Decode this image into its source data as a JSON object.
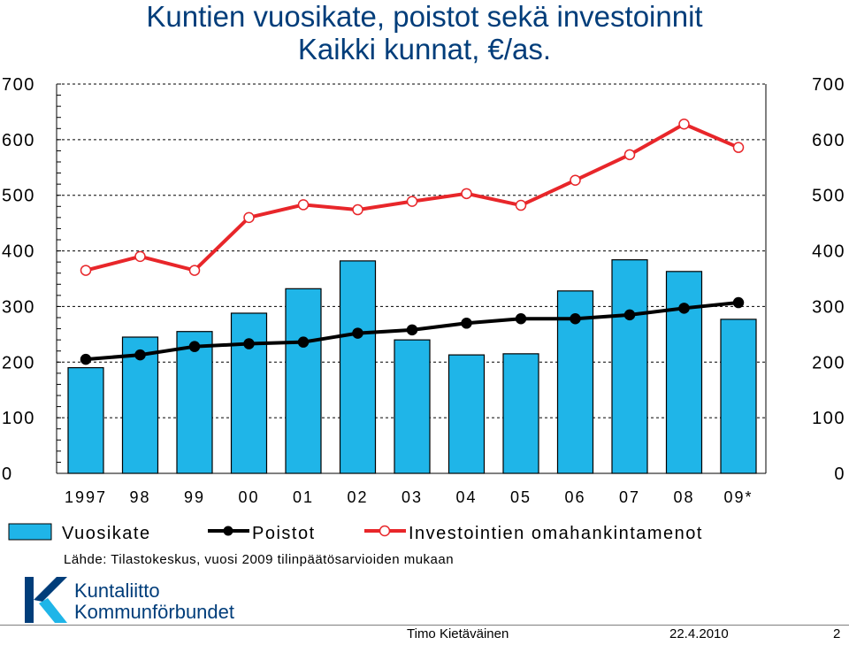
{
  "header": {
    "title_line1": "Kuntien vuosikate, poistot sekä investoinnit",
    "title_line2": "Kaikki kunnat, €/as."
  },
  "chart_data": {
    "type": "bar",
    "categories": [
      "1997",
      "98",
      "99",
      "00",
      "01",
      "02",
      "03",
      "04",
      "05",
      "06",
      "07",
      "08",
      "09*"
    ],
    "ylim": [
      0,
      700
    ],
    "yticks": [
      0,
      100,
      200,
      300,
      400,
      500,
      600,
      700
    ],
    "grid": true,
    "legend_position": "bottom",
    "series": [
      {
        "name": "Vuosikate",
        "type": "bar",
        "color": "#1fb5e8",
        "values": [
          190,
          245,
          255,
          288,
          332,
          382,
          240,
          213,
          215,
          328,
          384,
          363,
          277
        ]
      },
      {
        "name": "Poistot",
        "type": "line",
        "color": "#000000",
        "values": [
          205,
          213,
          228,
          233,
          236,
          252,
          258,
          270,
          278,
          278,
          285,
          297,
          307
        ]
      },
      {
        "name": "Investointien omahankintamenot",
        "type": "line",
        "color": "#e8262a",
        "values": [
          365,
          390,
          365,
          460,
          483,
          474,
          489,
          503,
          482,
          527,
          573,
          628,
          586
        ]
      }
    ]
  },
  "source": "Lähde: Tilastokeskus, vuosi 2009 tilinpäätösarvioiden mukaan",
  "logo": {
    "line1": "Kuntaliitto",
    "line2": "Kommunförbundet",
    "color": "#003d7a"
  },
  "footer": {
    "author": "Timo Kietäväinen",
    "date": "22.4.2010",
    "page": "2"
  }
}
